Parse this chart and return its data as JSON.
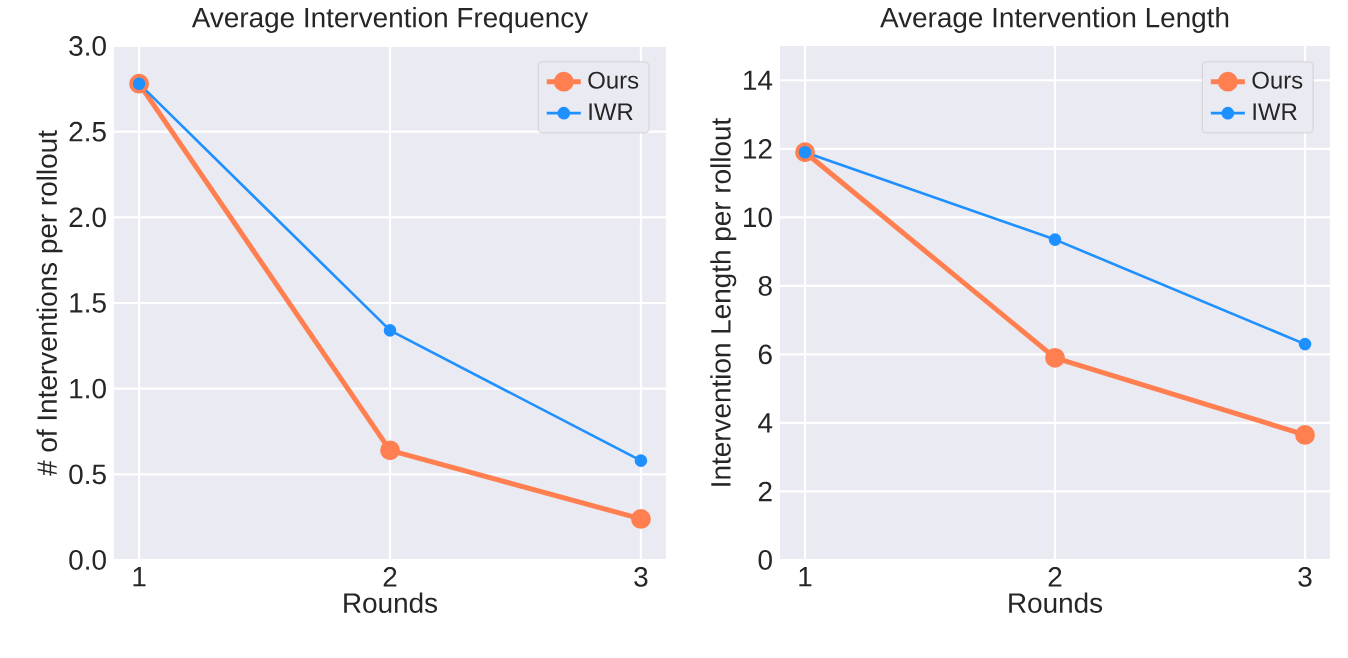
{
  "chart_data": [
    {
      "type": "line",
      "title": "Average Intervention Frequency",
      "xlabel": "Rounds",
      "ylabel": "# of Interventions per rollout",
      "x": [
        1,
        2,
        3
      ],
      "xlim": [
        0.9,
        3.1
      ],
      "xticks": [
        1,
        2,
        3
      ],
      "ylim": [
        0,
        3.0
      ],
      "yticks": [
        {
          "value": 0,
          "label": "0.0"
        },
        0.5,
        {
          "value": 1,
          "label": "1.0"
        },
        1.5,
        {
          "value": 2,
          "label": "2.0"
        },
        2.5,
        {
          "value": 3,
          "label": "3.0"
        }
      ],
      "grid": true,
      "legend": "top right",
      "marker": "circle",
      "line_style": "solid",
      "series": [
        {
          "name": "Ours",
          "color": "#ff7f50",
          "values": [
            2.78,
            0.64,
            0.24
          ]
        },
        {
          "name": "IWR",
          "color": "#1e90ff",
          "values": [
            2.78,
            1.34,
            0.58
          ]
        }
      ]
    },
    {
      "type": "line",
      "title": "Average Intervention Length",
      "xlabel": "Rounds",
      "ylabel": "Intervention Length per rollout",
      "x": [
        1,
        2,
        3
      ],
      "xlim": [
        0.9,
        3.1
      ],
      "xticks": [
        1,
        2,
        3
      ],
      "ylim": [
        0,
        15
      ],
      "yticks": [
        0,
        2,
        4,
        6,
        8,
        10,
        12,
        14
      ],
      "grid": true,
      "legend": "top right",
      "marker": "circle",
      "line_style": "solid",
      "series": [
        {
          "name": "Ours",
          "color": "#ff7f50",
          "values": [
            11.9,
            5.9,
            3.65
          ]
        },
        {
          "name": "IWR",
          "color": "#1e90ff",
          "values": [
            11.9,
            9.35,
            6.3
          ]
        }
      ]
    }
  ]
}
